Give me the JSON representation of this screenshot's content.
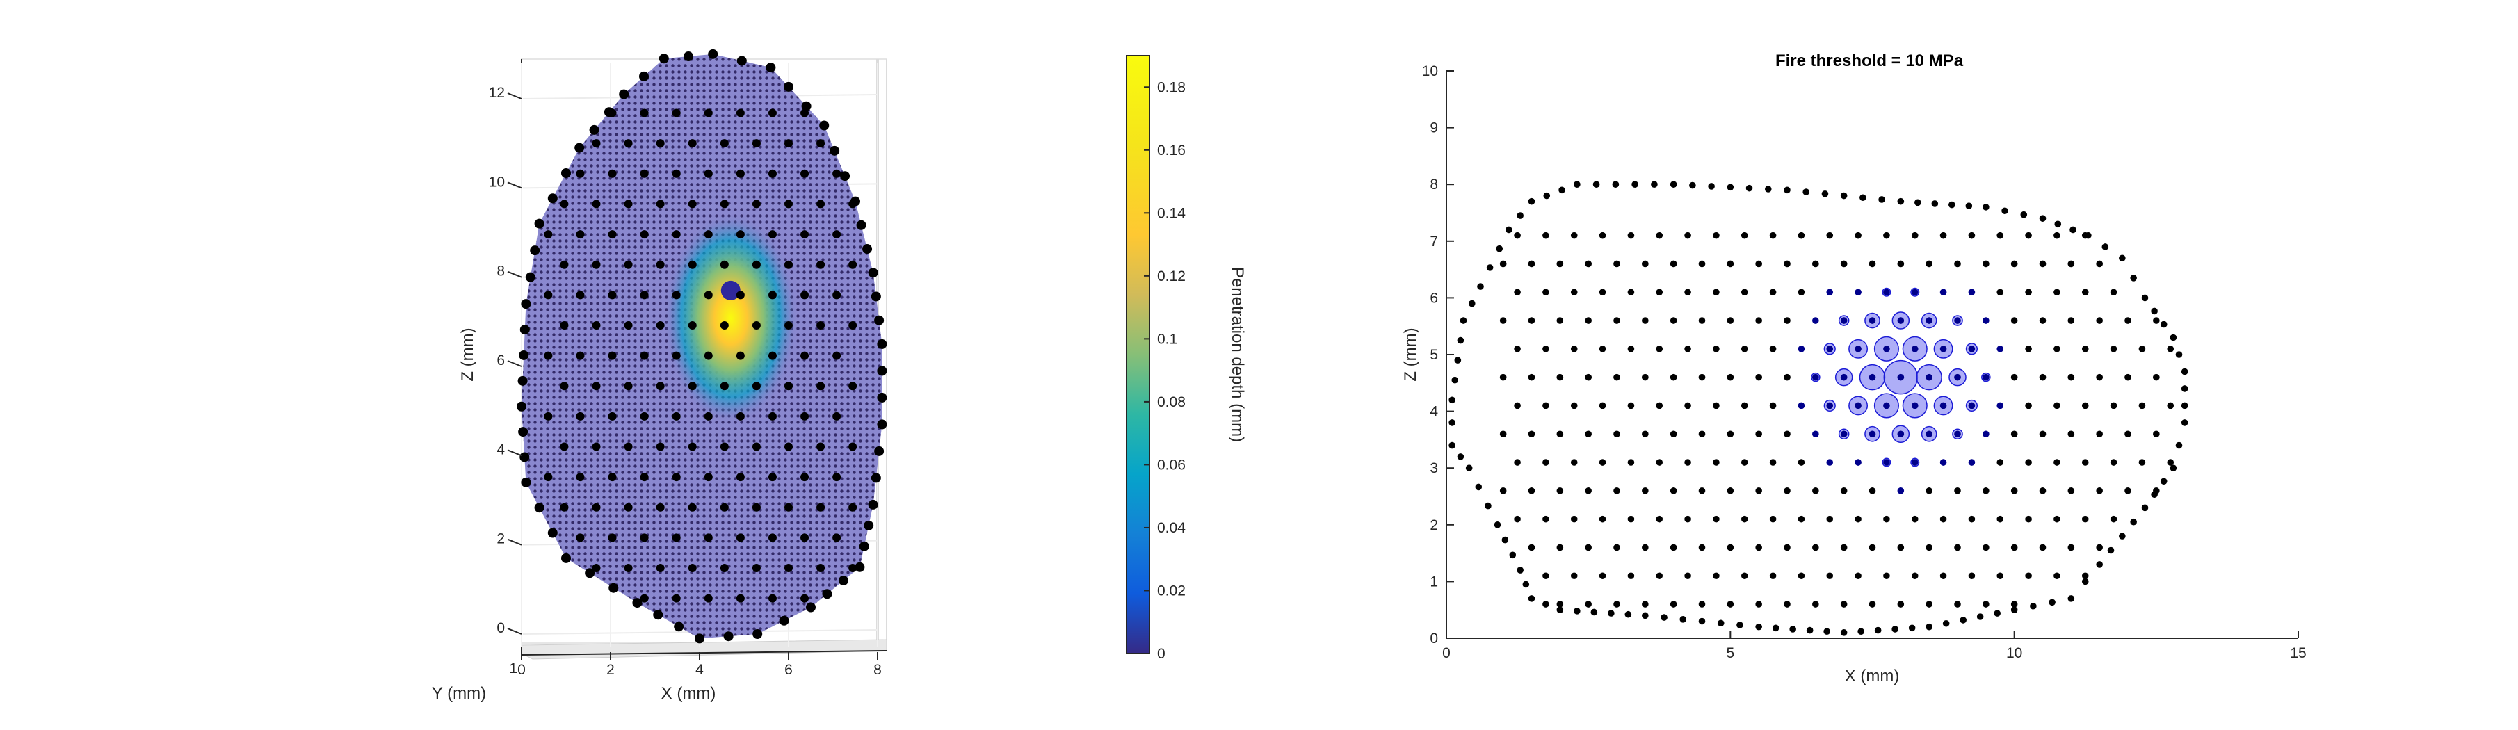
{
  "chart_data": [
    {
      "type": "scatter",
      "view": "3d",
      "title": "",
      "xlabel": "X (mm)",
      "ylabel": "Y (mm)",
      "zlabel": "Z (mm)",
      "xlim": [
        0,
        8
      ],
      "zlim": [
        0,
        13
      ],
      "x_ticks": [
        "0",
        "2",
        "4",
        "6",
        "8"
      ],
      "y_ticks": [
        "1"
      ],
      "z_ticks": [
        "0",
        "2",
        "4",
        "6",
        "8",
        "10",
        "12"
      ],
      "surface_outline_xz": [
        [
          4.3,
          13.0
        ],
        [
          5.6,
          12.7
        ],
        [
          6.8,
          11.4
        ],
        [
          7.5,
          9.7
        ],
        [
          7.9,
          8.1
        ],
        [
          8.1,
          6.5
        ],
        [
          8.1,
          4.7
        ],
        [
          7.9,
          2.9
        ],
        [
          7.6,
          1.5
        ],
        [
          6.5,
          0.6
        ],
        [
          5.3,
          0.0
        ],
        [
          4.0,
          -0.1
        ],
        [
          2.6,
          0.7
        ],
        [
          1.0,
          1.7
        ],
        [
          0.1,
          3.4
        ],
        [
          0.0,
          5.1
        ],
        [
          0.1,
          7.4
        ],
        [
          0.4,
          9.2
        ],
        [
          1.3,
          10.9
        ],
        [
          2.3,
          12.1
        ],
        [
          3.2,
          12.9
        ]
      ],
      "hotspot_xz": [
        4.7,
        7.7
      ],
      "colorbar": {
        "label": "Penetration depth (mm)",
        "lim": [
          0,
          0.19
        ],
        "ticks": [
          "0",
          "0.02",
          "0.04",
          "0.06",
          "0.08",
          "0.1",
          "0.12",
          "0.14",
          "0.16",
          "0.18"
        ]
      },
      "grid": true
    },
    {
      "type": "scatter",
      "title": "Fire threshold = 10 MPa",
      "xlabel": "X (mm)",
      "ylabel": "Z (mm)",
      "xlim": [
        0,
        15
      ],
      "ylim": [
        0,
        10
      ],
      "x_ticks": [
        "0",
        "5",
        "10",
        "15"
      ],
      "y_ticks": [
        "0",
        "1",
        "2",
        "3",
        "4",
        "5",
        "6",
        "7",
        "8",
        "9",
        "10"
      ],
      "outline_xz": [
        [
          0.1,
          3.4
        ],
        [
          0.1,
          4.2
        ],
        [
          0.3,
          5.6
        ],
        [
          0.6,
          6.2
        ],
        [
          1.1,
          7.2
        ],
        [
          1.5,
          7.7
        ],
        [
          2.3,
          8.0
        ],
        [
          4.0,
          8.0
        ],
        [
          6.0,
          7.9
        ],
        [
          7.0,
          7.8
        ],
        [
          8.0,
          7.7
        ],
        [
          9.5,
          7.6
        ],
        [
          10.5,
          7.4
        ],
        [
          11.3,
          7.1
        ],
        [
          11.9,
          6.7
        ],
        [
          12.3,
          6.0
        ],
        [
          12.8,
          5.3
        ],
        [
          13.0,
          4.7
        ],
        [
          13.0,
          3.8
        ],
        [
          12.8,
          3.0
        ],
        [
          12.3,
          2.3
        ],
        [
          11.5,
          1.3
        ],
        [
          11.0,
          0.7
        ],
        [
          10.0,
          0.5
        ],
        [
          8.5,
          0.2
        ],
        [
          7.0,
          0.1
        ],
        [
          5.5,
          0.2
        ],
        [
          3.5,
          0.4
        ],
        [
          2.0,
          0.5
        ],
        [
          1.5,
          0.7
        ],
        [
          1.3,
          1.2
        ],
        [
          0.9,
          2.0
        ],
        [
          0.4,
          3.0
        ]
      ],
      "activation_center": [
        8.0,
        4.6
      ],
      "activation_radius": 2.0,
      "grid": false
    }
  ]
}
